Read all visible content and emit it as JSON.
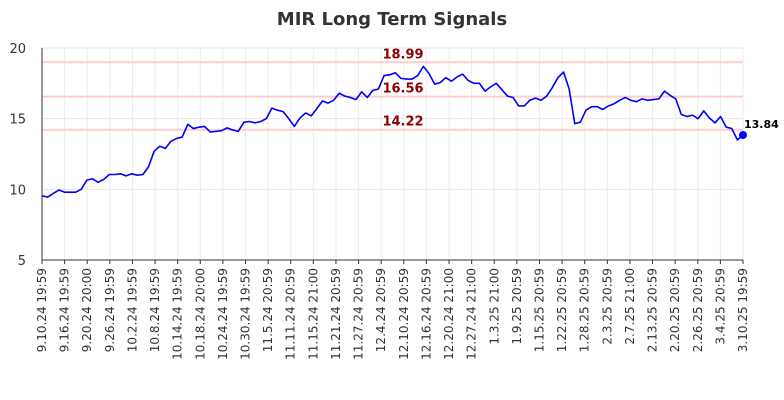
{
  "chart_data": {
    "type": "line",
    "title": "MIR Long Term Signals",
    "xlabel": "",
    "ylabel": "",
    "ylim": [
      5,
      20
    ],
    "yticks": [
      "5",
      "10",
      "15",
      "20"
    ],
    "grid": true,
    "x_tick_labels": [
      "9.10.24 19:59",
      "9.16.24 19:59",
      "9.20.24 20:00",
      "9.26.24 19:59",
      "10.2.24 19:59",
      "10.8.24 19:59",
      "10.14.24 19:59",
      "10.18.24 20:00",
      "10.24.24 19:59",
      "10.30.24 19:59",
      "11.5.24 20:59",
      "11.11.24 20:59",
      "11.15.24 21:00",
      "11.21.24 20:59",
      "11.27.24 20:59",
      "12.4.24 20:59",
      "12.10.24 20:59",
      "12.16.24 20:59",
      "12.20.24 21:00",
      "12.27.24 21:00",
      "1.3.25 21:00",
      "1.9.25 20:59",
      "1.15.25 20:59",
      "1.22.25 20:59",
      "1.28.25 20:59",
      "2.3.25 20:59",
      "2.7.25 21:00",
      "2.13.25 20:59",
      "2.20.25 20:59",
      "2.26.25 20:59",
      "3.4.25 20:59",
      "3.10.25 19:59"
    ],
    "line_color": "#0000ff",
    "reference_lines": [
      {
        "value": 18.99,
        "label": "18.99"
      },
      {
        "value": 16.56,
        "label": "16.56"
      },
      {
        "value": 14.22,
        "label": "14.22"
      }
    ],
    "reference_color": "#ffcccc",
    "last_value_label": "13.84",
    "series": [
      {
        "values": [
          9.55,
          9.45,
          9.7,
          9.95,
          9.8,
          9.8,
          9.8,
          10.0,
          10.65,
          10.75,
          10.5,
          10.7,
          11.05,
          11.05,
          11.1,
          10.95,
          11.1,
          11.0,
          11.05,
          11.6,
          12.7,
          13.05,
          12.9,
          13.4,
          13.6,
          13.7,
          14.6,
          14.3,
          14.4,
          14.45,
          14.05,
          14.1,
          14.15,
          14.35,
          14.2,
          14.1,
          14.75,
          14.8,
          14.7,
          14.8,
          15.0,
          15.75,
          15.6,
          15.5,
          15.0,
          14.45,
          15.05,
          15.4,
          15.2,
          15.7,
          16.25,
          16.1,
          16.3,
          16.8,
          16.6,
          16.5,
          16.35,
          16.9,
          16.5,
          17.0,
          17.1,
          18.05,
          18.1,
          18.25,
          17.85,
          17.8,
          17.8,
          18.05,
          18.7,
          18.2,
          17.45,
          17.55,
          17.9,
          17.65,
          17.95,
          18.15,
          17.7,
          17.5,
          17.5,
          16.95,
          17.25,
          17.5,
          17.05,
          16.6,
          16.5,
          15.9,
          15.9,
          16.3,
          16.45,
          16.3,
          16.6,
          17.2,
          17.9,
          18.3,
          17.1,
          14.65,
          14.75,
          15.6,
          15.85,
          15.85,
          15.65,
          15.9,
          16.05,
          16.3,
          16.5,
          16.3,
          16.2,
          16.4,
          16.3,
          16.35,
          16.4,
          16.95,
          16.65,
          16.4,
          15.3,
          15.15,
          15.25,
          15.0,
          15.55,
          15.05,
          14.7,
          15.15,
          14.4,
          14.3,
          13.5,
          13.84
        ]
      }
    ]
  }
}
